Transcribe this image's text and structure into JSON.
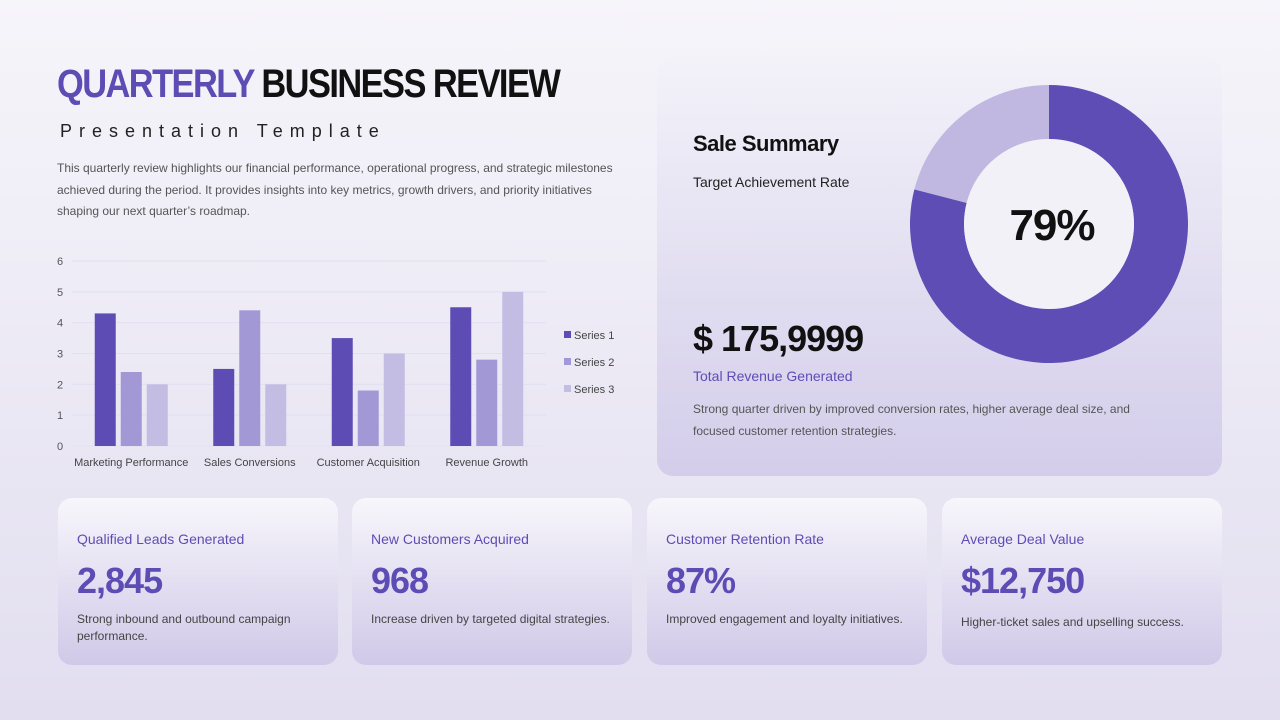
{
  "header": {
    "title_accent": "QUARTERLY",
    "title_rest": "BUSINESS REVIEW",
    "subtitle": "Presentation Template",
    "intro": "This quarterly review highlights our financial performance, operational progress, and strategic milestones achieved during the period. It provides insights into key metrics, growth drivers, and priority initiatives shaping our next quarter’s roadmap."
  },
  "summary": {
    "title": "Sale Summary",
    "subtitle": "Target Achievement Rate",
    "revenue": "$ 175,9999",
    "revenue_label": "Total Revenue Generated",
    "note": "Strong quarter driven by improved conversion rates, higher average deal size, and focused customer retention strategies."
  },
  "chart_data": [
    {
      "type": "bar",
      "categories": [
        "Marketing Performance",
        "Sales Conversions",
        "Customer Acquisition",
        "Revenue Growth"
      ],
      "series": [
        {
          "name": "Series 1",
          "color": "#5e4cb5",
          "values": [
            4.3,
            2.5,
            3.5,
            4.5
          ]
        },
        {
          "name": "Series 2",
          "color": "#a398d6",
          "values": [
            2.4,
            4.4,
            1.8,
            2.8
          ]
        },
        {
          "name": "Series 3",
          "color": "#c3bce3",
          "values": [
            2,
            2,
            3,
            5
          ]
        }
      ],
      "ylim": [
        0,
        6
      ],
      "yticks": [
        0,
        1,
        2,
        3,
        4,
        5,
        6
      ],
      "grid": true,
      "legend": "right"
    },
    {
      "type": "donut",
      "values": [
        79,
        21
      ],
      "value_labels": [
        "79%",
        null
      ],
      "colors": [
        "#5e4db5",
        "#c0b8e0"
      ]
    }
  ],
  "cards": [
    {
      "label": "Qualified Leads Generated",
      "value": "2,845",
      "text": "Strong inbound and outbound campaign performance."
    },
    {
      "label": "New Customers Acquired",
      "value": "968",
      "text": "Increase driven by targeted digital strategies."
    },
    {
      "label": "Customer Retention Rate",
      "value": "87%",
      "text": "Improved engagement and loyalty initiatives."
    },
    {
      "label": "Average Deal Value",
      "value": "$12,750",
      "text": "Higher-ticket sales and upselling success."
    }
  ]
}
